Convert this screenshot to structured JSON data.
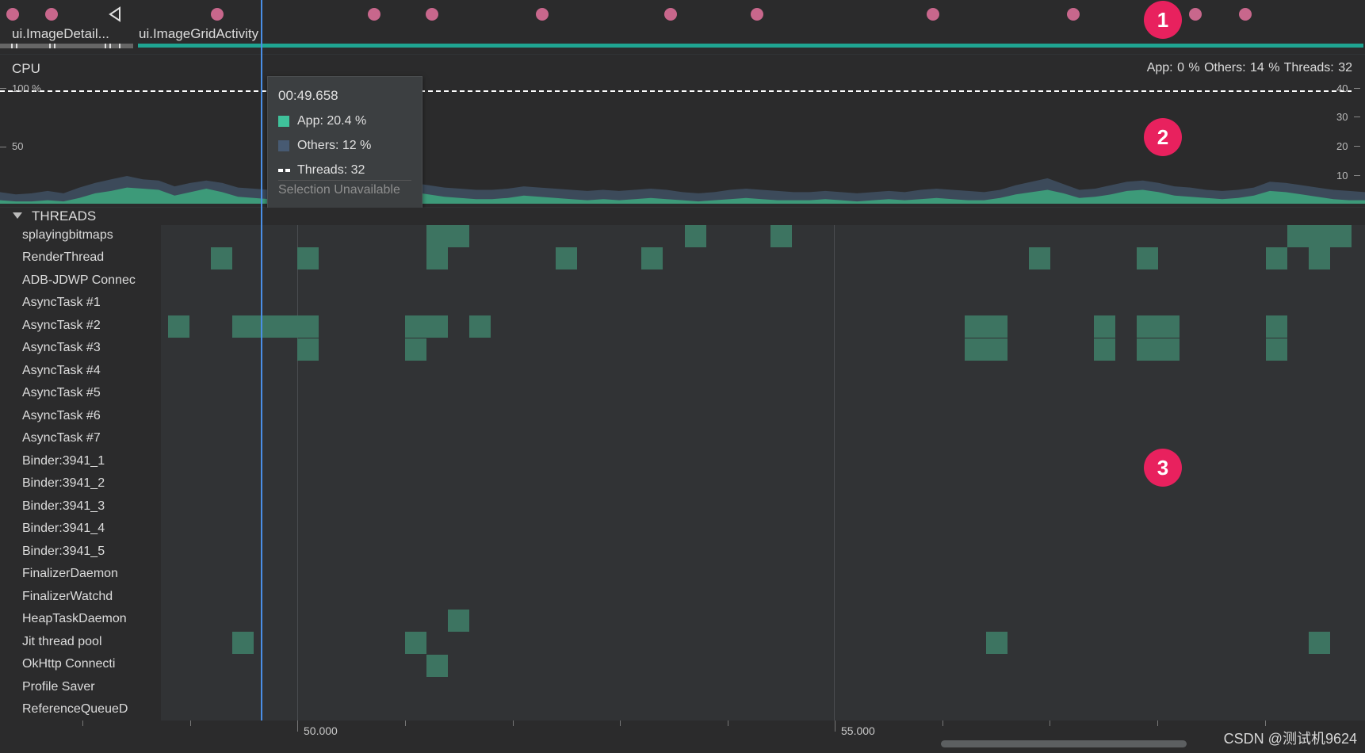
{
  "events": {
    "activities": [
      "ui.ImageDetail...",
      "ui.ImageGridActivity"
    ]
  },
  "badges": [
    "1",
    "2",
    "3"
  ],
  "cpu": {
    "title": "CPU",
    "summary": "App: 0 %   Others: 14 %   Threads: 32",
    "left_axis": [
      "100 %",
      "50"
    ],
    "right_axis": [
      "40",
      "30",
      "20",
      "10"
    ],
    "app_color": "#3d9a79",
    "others_color": "#3c4a5a",
    "threads_line_color": "#ffffff",
    "others_area": [
      10,
      8,
      9,
      11,
      9,
      14,
      18,
      21,
      24,
      21,
      20,
      15,
      18,
      20,
      18,
      14,
      13,
      12,
      11,
      12,
      12,
      16,
      14,
      15,
      17,
      20,
      18,
      16,
      14,
      13,
      12,
      12,
      13,
      15,
      14,
      13,
      12,
      11,
      12,
      11,
      12,
      13,
      12,
      10,
      9,
      10,
      12,
      13,
      12,
      11,
      10,
      10,
      11,
      10,
      9,
      10,
      11,
      10,
      12,
      13,
      12,
      11,
      10,
      12,
      16,
      19,
      22,
      17,
      12,
      13,
      16,
      19,
      20,
      18,
      15,
      14,
      12,
      11,
      12,
      14,
      19,
      18,
      16,
      14,
      12,
      11,
      10
    ],
    "app_area": [
      3,
      2,
      2,
      3,
      2,
      5,
      9,
      11,
      14,
      13,
      12,
      7,
      10,
      13,
      10,
      6,
      5,
      4,
      3,
      4,
      4,
      8,
      6,
      7,
      9,
      12,
      10,
      8,
      6,
      5,
      4,
      4,
      5,
      7,
      6,
      5,
      4,
      3,
      4,
      3,
      4,
      5,
      4,
      3,
      2,
      3,
      4,
      5,
      4,
      3,
      3,
      3,
      4,
      3,
      2,
      3,
      4,
      3,
      4,
      5,
      4,
      3,
      3,
      5,
      8,
      10,
      12,
      9,
      5,
      6,
      8,
      11,
      12,
      10,
      7,
      6,
      5,
      4,
      5,
      7,
      11,
      10,
      8,
      6,
      4,
      3,
      3
    ]
  },
  "tooltip": {
    "time": "00:49.658",
    "app": "App: 20.4 %",
    "others": "Others: 12 %",
    "threads": "Threads: 32",
    "selection": "Selection Unavailable"
  },
  "threads": {
    "title": "THREADS",
    "names": [
      "splayingbitmaps",
      "RenderThread",
      "ADB-JDWP Connec",
      "AsyncTask #1",
      "AsyncTask #2",
      "AsyncTask #3",
      "AsyncTask #4",
      "AsyncTask #5",
      "AsyncTask #6",
      "AsyncTask #7",
      "Binder:3941_1",
      "Binder:3941_2",
      "Binder:3941_3",
      "Binder:3941_4",
      "Binder:3941_5",
      "FinalizerDaemon",
      "FinalizerWatchd",
      "HeapTaskDaemon",
      "Jit thread pool",
      "OkHttp Connecti",
      "Profile Saver",
      "ReferenceQueueD"
    ],
    "state_color": "#3d7461"
  },
  "time_axis": {
    "labels": [
      "50.000",
      "55.000"
    ]
  },
  "watermark": "CSDN @测试机9624"
}
